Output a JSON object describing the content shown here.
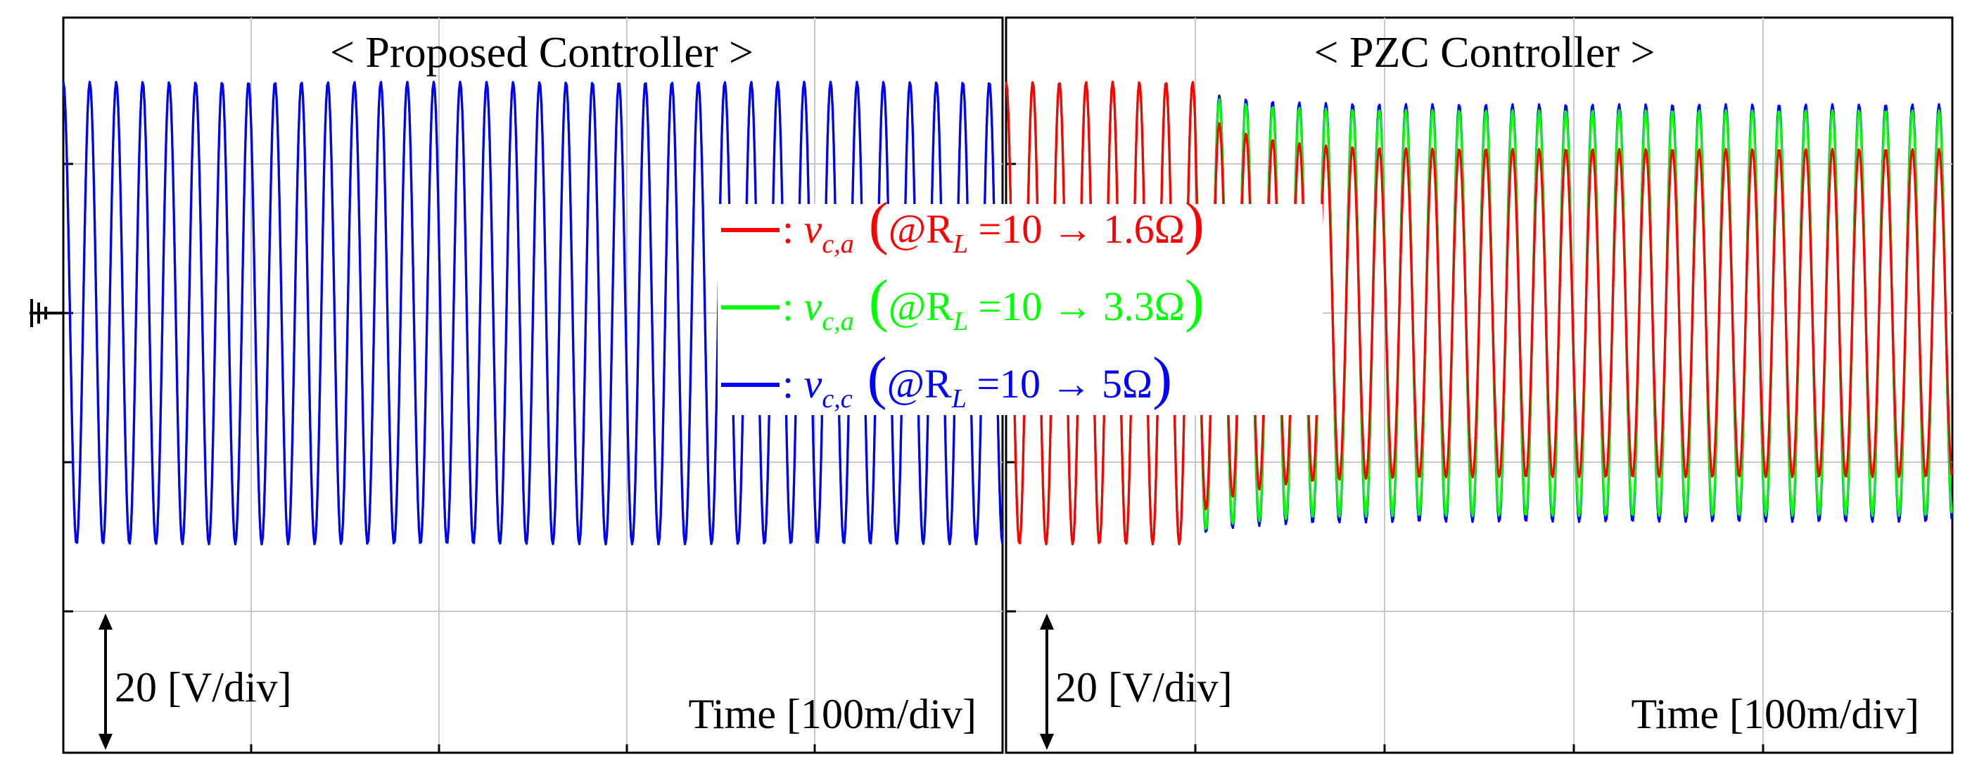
{
  "chart_data": {
    "type": "line",
    "y_unit": "[V/div]",
    "x_unit": "[100m/div]",
    "panels": [
      {
        "title": "< Proposed Controller >",
        "ydiv_label": "20 [V/div]",
        "time_label": "Time [100m/div]",
        "grid": "on",
        "divisions_x": 5,
        "divisions_y": 5,
        "amplitude_div": [
          1.55,
          1.55
        ],
        "cycles_per_div": 7.1,
        "step_div": 1.0,
        "series": [
          {
            "name": "v_c,a @RL=10→1.6Ω",
            "color": "#ff0000",
            "amp_before_div": 1.55,
            "amp_after_div": 1.55
          },
          {
            "name": "v_c,a @RL=10→3.3Ω",
            "color": "#00ff00",
            "amp_before_div": 1.55,
            "amp_after_div": 1.55
          },
          {
            "name": "v_c,c @RL=10→5Ω",
            "color": "#0000ff",
            "amp_before_div": 1.55,
            "amp_after_div": 1.55
          }
        ]
      },
      {
        "title": "< PZC Controller >",
        "ydiv_label": "20 [V/div]",
        "time_label": "Time [100m/div]",
        "grid": "on",
        "divisions_x": 5,
        "divisions_y": 5,
        "cycles_per_div": 7.1,
        "step_div": 1.0,
        "series": [
          {
            "name": "v_c,c @RL=10→5Ω",
            "color": "#0000ff",
            "amp_before_div": 1.55,
            "amp_after_div": 1.4
          },
          {
            "name": "v_c,a @RL=10→3.3Ω",
            "color": "#00ff00",
            "amp_before_div": 1.55,
            "amp_after_div": 1.36
          },
          {
            "name": "v_c,a @RL=10→1.6Ω",
            "color": "#ff0000",
            "amp_before_div": 1.55,
            "amp_after_div": 1.1
          }
        ]
      }
    ],
    "legend": {
      "placement": "center",
      "entries": [
        {
          "symbol": ":",
          "var": "v",
          "sub": "c,a",
          "cond": "@R",
          "condsub": "L",
          "eq": "=10 → 1.6Ω",
          "color": "#ff0000"
        },
        {
          "symbol": ":",
          "var": "v",
          "sub": "c,a",
          "cond": "@R",
          "condsub": "L",
          "eq": "=10 → 3.3Ω",
          "color": "#00ff00"
        },
        {
          "symbol": ":",
          "var": "v",
          "sub": "c,c",
          "cond": "@R",
          "condsub": "L",
          "eq": "=10 → 5Ω",
          "color": "#0000ff"
        }
      ]
    }
  },
  "ground_symbol": "ground-marker",
  "colors": {
    "red": "#ff0000",
    "green": "#00ff00",
    "blue": "#0000ff",
    "grid": "#c8c8c8"
  }
}
